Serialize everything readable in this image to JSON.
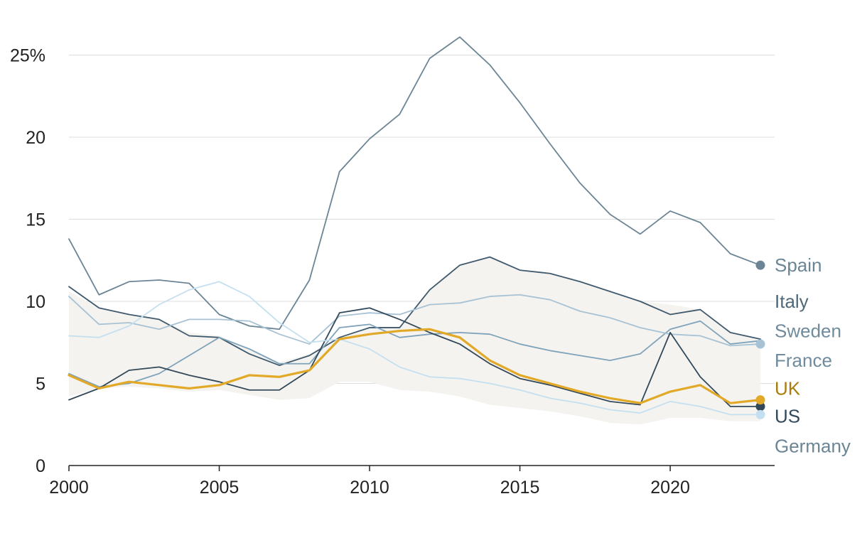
{
  "chart_data": {
    "type": "line",
    "title": "",
    "xlabel": "",
    "ylabel": "",
    "xlim": [
      2000,
      2023
    ],
    "ylim": [
      0,
      27
    ],
    "y_ticks": [
      {
        "value": 0,
        "label": "0"
      },
      {
        "value": 5,
        "label": "5"
      },
      {
        "value": 10,
        "label": "10"
      },
      {
        "value": 15,
        "label": "15"
      },
      {
        "value": 20,
        "label": "20"
      },
      {
        "value": 25,
        "label": "25%"
      }
    ],
    "x_ticks": [
      {
        "value": 2000,
        "label": "2000"
      },
      {
        "value": 2005,
        "label": "2005"
      },
      {
        "value": 2010,
        "label": "2010"
      },
      {
        "value": 2015,
        "label": "2015"
      },
      {
        "value": 2020,
        "label": "2020"
      }
    ],
    "grid": true,
    "legend": "direct labels at right end of lines",
    "x": [
      2000,
      2001,
      2002,
      2003,
      2004,
      2005,
      2006,
      2007,
      2008,
      2009,
      2010,
      2011,
      2012,
      2013,
      2014,
      2015,
      2016,
      2017,
      2018,
      2019,
      2020,
      2021,
      2022,
      2023
    ],
    "band": {
      "fill": "#f5f3ef",
      "upper": [
        10.6,
        9.6,
        9.2,
        8.9,
        8.1,
        7.9,
        7.1,
        6.3,
        6.8,
        7.8,
        8.4,
        8.4,
        10.7,
        12.2,
        12.7,
        11.9,
        11.7,
        11.2,
        10.6,
        10.0,
        9.8,
        9.5,
        8.1,
        7.7
      ],
      "lower": [
        4.2,
        4.7,
        4.8,
        4.7,
        4.5,
        4.6,
        4.3,
        4.0,
        4.1,
        5.1,
        5.1,
        4.6,
        4.5,
        4.2,
        3.7,
        3.5,
        3.3,
        3.0,
        2.6,
        2.5,
        2.9,
        2.9,
        2.7,
        2.7
      ]
    },
    "series": [
      {
        "name": "Spain",
        "color": "#6b8595",
        "width": 1.8,
        "end_dot": true,
        "values": [
          13.8,
          10.4,
          11.2,
          11.3,
          11.1,
          9.2,
          8.5,
          8.3,
          11.3,
          17.9,
          19.9,
          21.4,
          24.8,
          26.1,
          24.4,
          22.1,
          19.6,
          17.2,
          15.3,
          14.1,
          15.5,
          14.8,
          12.9,
          12.2
        ]
      },
      {
        "name": "Italy",
        "color": "#3f5a6e",
        "width": 1.8,
        "end_dot": false,
        "values": [
          10.9,
          9.6,
          9.2,
          8.9,
          7.9,
          7.8,
          6.8,
          6.1,
          6.7,
          7.8,
          8.4,
          8.4,
          10.7,
          12.2,
          12.7,
          11.9,
          11.7,
          11.2,
          10.6,
          10.0,
          9.2,
          9.5,
          8.1,
          7.7
        ]
      },
      {
        "name": "Sweden",
        "color": "#7fa3bb",
        "width": 1.8,
        "end_dot": false,
        "values": [
          5.6,
          4.8,
          5.0,
          5.6,
          6.7,
          7.8,
          7.1,
          6.2,
          6.2,
          8.4,
          8.6,
          7.8,
          8.0,
          8.1,
          8.0,
          7.4,
          7.0,
          6.7,
          6.4,
          6.8,
          8.3,
          8.8,
          7.4,
          7.6
        ]
      },
      {
        "name": "France",
        "color": "#a7c2d4",
        "width": 1.8,
        "end_dot": true,
        "values": [
          10.3,
          8.6,
          8.7,
          8.3,
          8.9,
          8.9,
          8.8,
          8.0,
          7.4,
          9.1,
          9.3,
          9.2,
          9.8,
          9.9,
          10.3,
          10.4,
          10.1,
          9.4,
          9.0,
          8.4,
          8.0,
          7.9,
          7.3,
          7.4
        ]
      },
      {
        "name": "UK",
        "color": "#e1a927",
        "width": 3.2,
        "end_dot": true,
        "values": [
          5.5,
          4.7,
          5.1,
          4.9,
          4.7,
          4.9,
          5.5,
          5.4,
          5.8,
          7.7,
          8.0,
          8.2,
          8.3,
          7.8,
          6.4,
          5.5,
          5.0,
          4.5,
          4.1,
          3.8,
          4.5,
          4.9,
          3.8,
          4.0
        ]
      },
      {
        "name": "US",
        "color": "#33495a",
        "width": 1.8,
        "end_dot": true,
        "values": [
          4.0,
          4.7,
          5.8,
          6.0,
          5.5,
          5.1,
          4.6,
          4.6,
          5.8,
          9.3,
          9.6,
          8.9,
          8.1,
          7.4,
          6.2,
          5.3,
          4.9,
          4.4,
          3.9,
          3.7,
          8.1,
          5.4,
          3.6,
          3.6
        ]
      },
      {
        "name": "Germany",
        "color": "#c4e0f0",
        "width": 1.8,
        "end_dot": true,
        "values": [
          7.9,
          7.8,
          8.5,
          9.8,
          10.7,
          11.2,
          10.3,
          8.7,
          7.5,
          7.7,
          7.1,
          6.0,
          5.4,
          5.3,
          5.0,
          4.6,
          4.1,
          3.8,
          3.4,
          3.2,
          3.9,
          3.6,
          3.1,
          3.1
        ]
      }
    ],
    "labels": [
      {
        "text": "Spain",
        "color": "#6b8595",
        "anchor_value": 12.2
      },
      {
        "text": "Italy",
        "color": "#52697a",
        "anchor_value": 10.0
      },
      {
        "text": "Sweden",
        "color": "#6f8b9d",
        "anchor_value": 8.2
      },
      {
        "text": "France",
        "color": "#6f8b9d",
        "anchor_value": 6.4
      },
      {
        "text": "UK",
        "color": "#a87d10",
        "anchor_value": 4.7
      },
      {
        "text": "US",
        "color": "#33495a",
        "anchor_value": 3.0
      },
      {
        "text": "Germany",
        "color": "#6b8595",
        "anchor_value": 1.2
      }
    ]
  }
}
